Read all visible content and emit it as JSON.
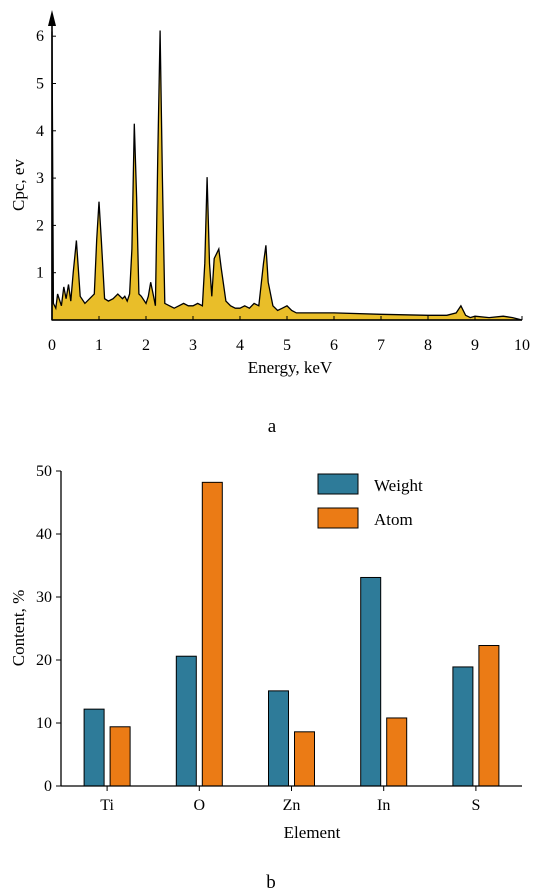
{
  "chart_data": [
    {
      "type": "area",
      "panel_label": "a",
      "xlabel": "Energy, keV",
      "ylabel": "Cpc, ev",
      "xlim": [
        0,
        10
      ],
      "ylim": [
        0,
        6.3
      ],
      "x_ticks": [
        0,
        1,
        2,
        3,
        4,
        5,
        6,
        7,
        8,
        9,
        10
      ],
      "y_ticks": [
        1,
        2,
        3,
        4,
        5,
        6
      ],
      "fill_color": "#e9be29",
      "line_color": "#000000",
      "x": [
        0,
        0.03,
        0.08,
        0.12,
        0.2,
        0.25,
        0.3,
        0.35,
        0.4,
        0.45,
        0.52,
        0.6,
        0.7,
        0.8,
        0.9,
        0.95,
        1.0,
        1.05,
        1.12,
        1.2,
        1.3,
        1.4,
        1.5,
        1.55,
        1.6,
        1.65,
        1.7,
        1.75,
        1.8,
        1.85,
        1.9,
        2.0,
        2.05,
        2.1,
        2.15,
        2.2,
        2.25,
        2.3,
        2.35,
        2.4,
        2.5,
        2.6,
        2.7,
        2.8,
        2.9,
        3.0,
        3.1,
        3.2,
        3.25,
        3.3,
        3.35,
        3.4,
        3.45,
        3.5,
        3.55,
        3.6,
        3.7,
        3.8,
        3.9,
        4.0,
        4.1,
        4.2,
        4.3,
        4.4,
        4.5,
        4.55,
        4.6,
        4.7,
        4.8,
        4.9,
        5.0,
        5.1,
        5.2,
        6.0,
        7.0,
        8.0,
        8.4,
        8.6,
        8.7,
        8.8,
        8.9,
        9.0,
        9.3,
        9.6,
        9.8,
        10.0
      ],
      "y": [
        6.1,
        0.35,
        0.25,
        0.55,
        0.3,
        0.7,
        0.45,
        0.75,
        0.4,
        1.0,
        1.68,
        0.5,
        0.35,
        0.45,
        0.55,
        1.7,
        2.5,
        1.7,
        0.45,
        0.4,
        0.45,
        0.55,
        0.45,
        0.5,
        0.4,
        0.55,
        1.5,
        4.15,
        2.6,
        0.55,
        0.5,
        0.35,
        0.5,
        0.8,
        0.55,
        0.3,
        3.5,
        6.12,
        3.0,
        0.35,
        0.3,
        0.25,
        0.3,
        0.35,
        0.3,
        0.3,
        0.35,
        0.3,
        1.2,
        3.02,
        1.2,
        0.5,
        1.3,
        1.4,
        1.5,
        1.1,
        0.4,
        0.3,
        0.25,
        0.25,
        0.3,
        0.25,
        0.35,
        0.3,
        1.2,
        1.58,
        0.8,
        0.3,
        0.2,
        0.25,
        0.3,
        0.2,
        0.15,
        0.15,
        0.12,
        0.1,
        0.1,
        0.15,
        0.3,
        0.1,
        0.05,
        0.08,
        0.05,
        0.08,
        0.05,
        0.0
      ]
    },
    {
      "type": "bar",
      "panel_label": "b",
      "xlabel": "Element",
      "ylabel": "Content, %",
      "ylim": [
        0,
        50
      ],
      "y_ticks": [
        0,
        10,
        20,
        30,
        40,
        50
      ],
      "categories": [
        "Ti",
        "O",
        "Zn",
        "In",
        "S"
      ],
      "legend_position": "top-right",
      "series": [
        {
          "name": "Weight",
          "color": "#2e7b99",
          "values": [
            12.2,
            20.6,
            15.1,
            33.1,
            18.9
          ]
        },
        {
          "name": "Atom",
          "color": "#eb7b15",
          "values": [
            9.4,
            48.2,
            8.6,
            10.8,
            22.3
          ]
        }
      ]
    }
  ]
}
